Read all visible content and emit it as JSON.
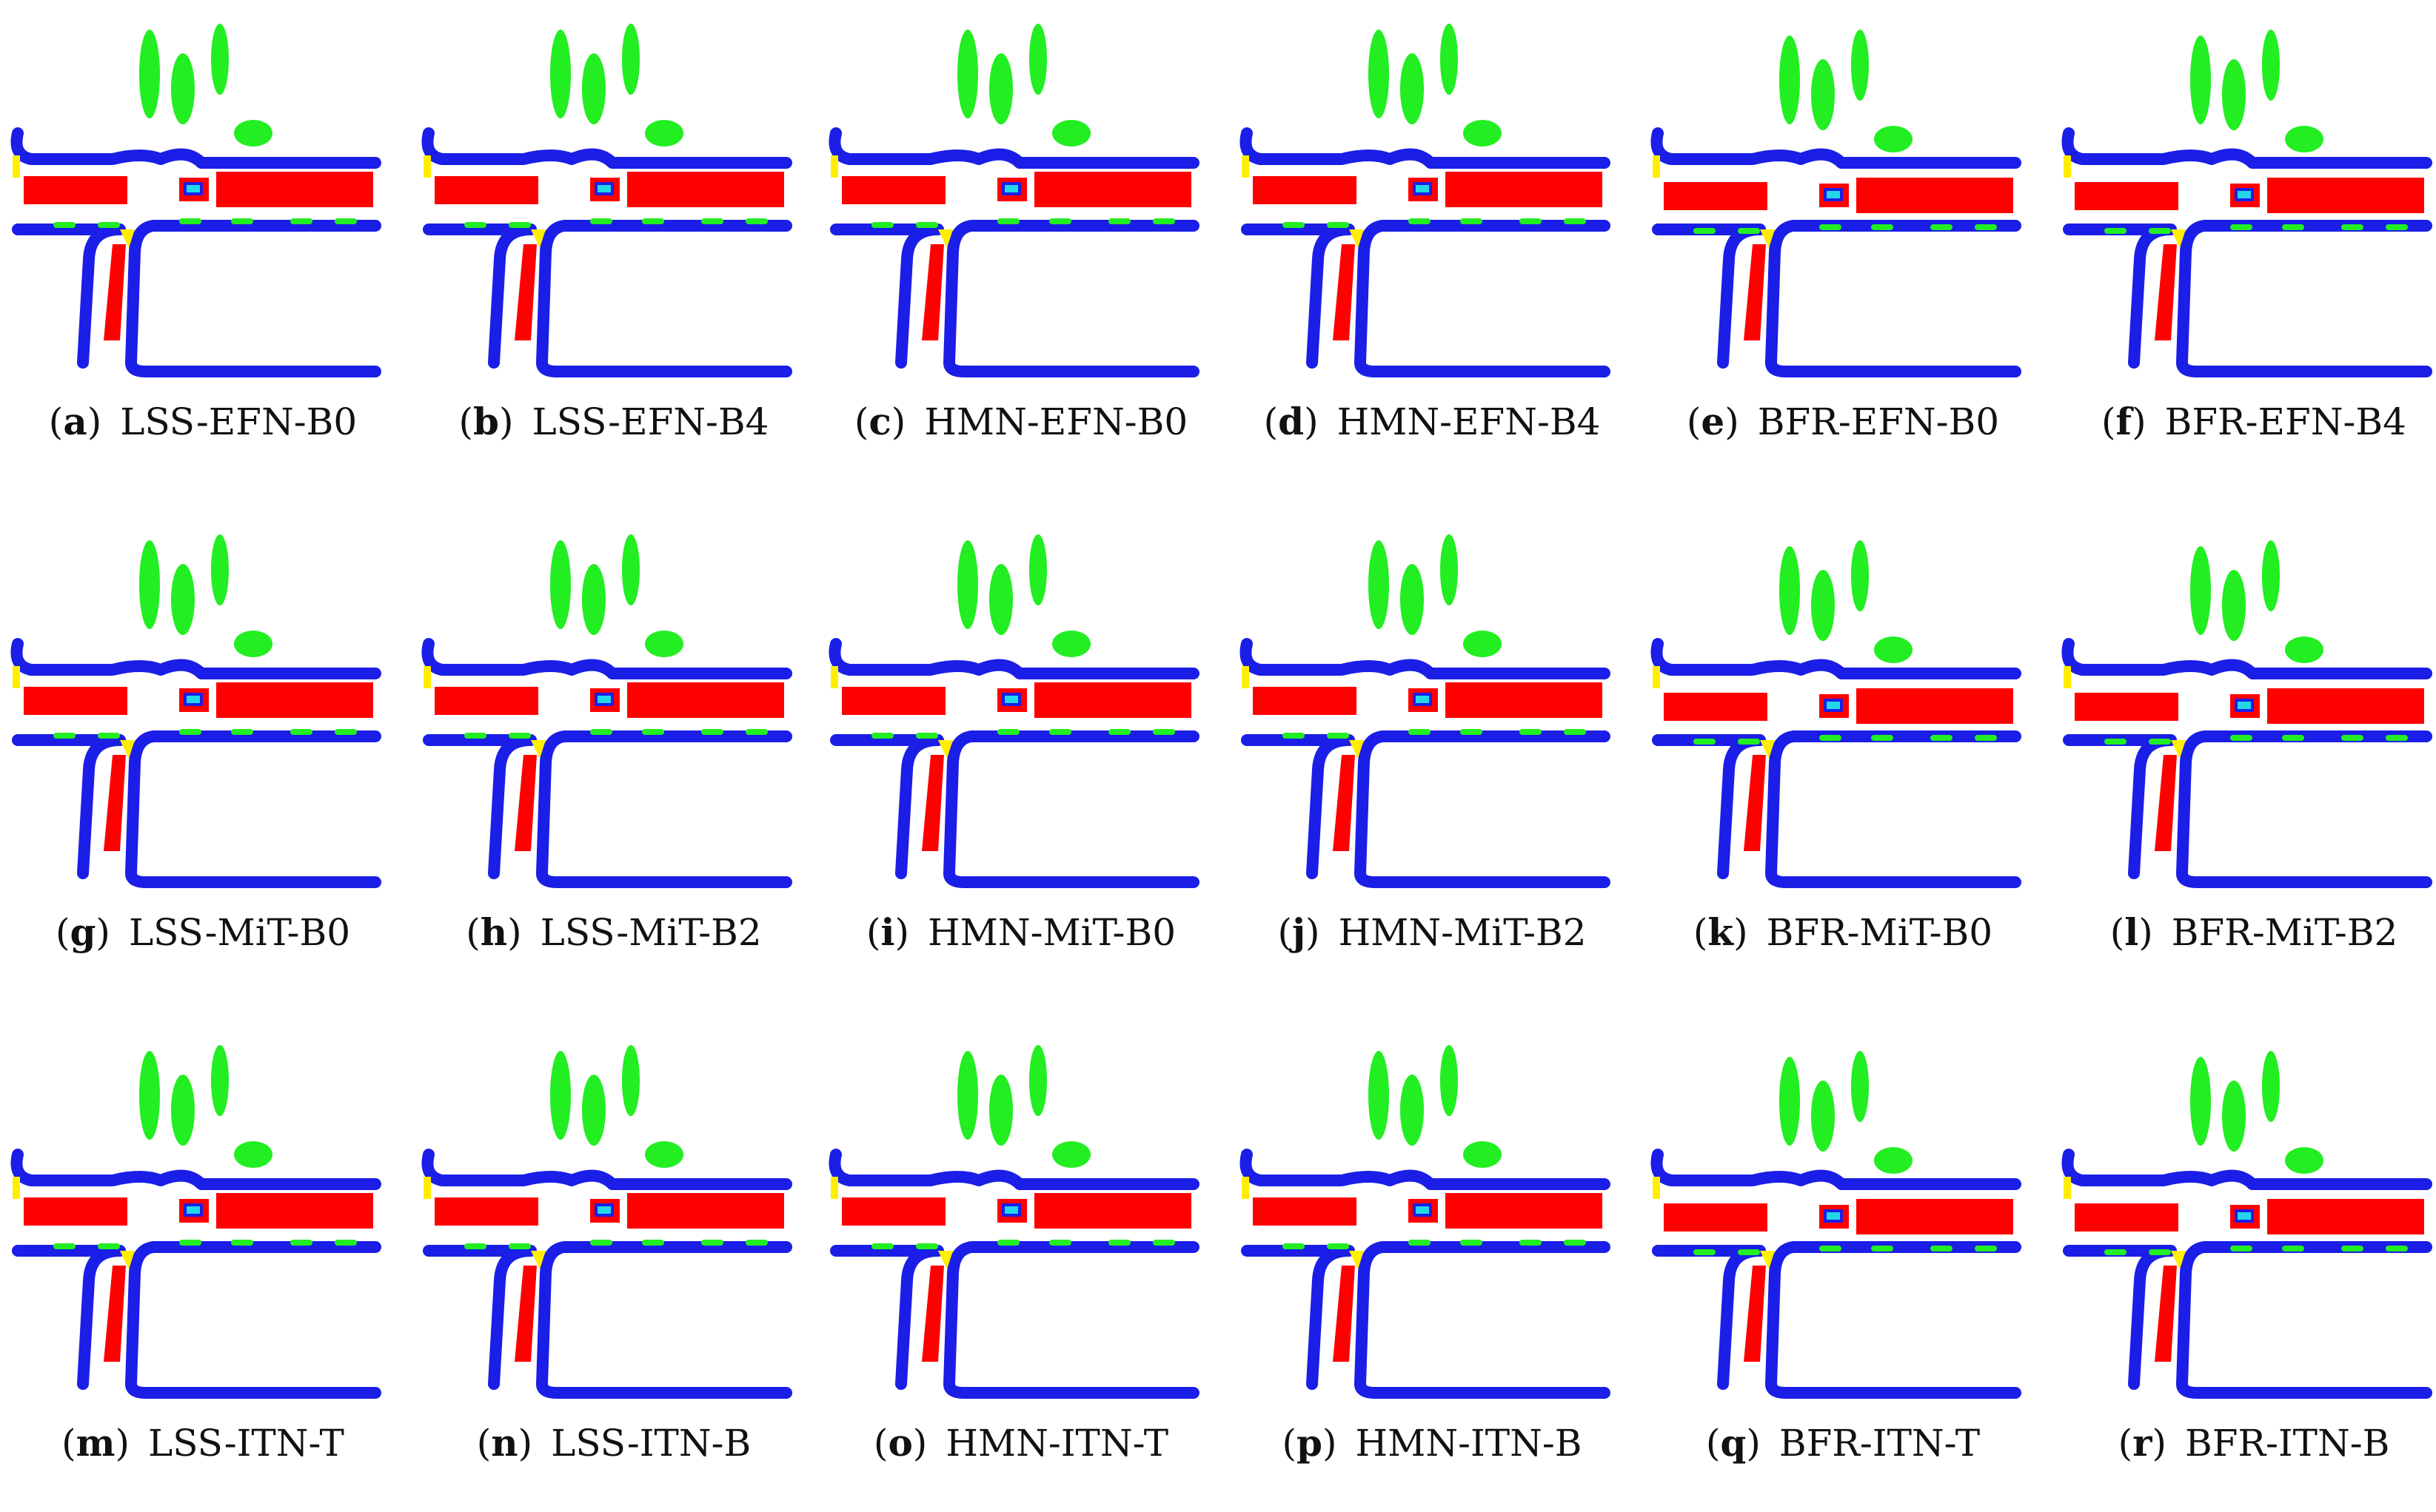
{
  "colors": {
    "road": "#1a1ee6",
    "vehicle": "#ff0000",
    "vegetation": "#22ee22",
    "marking": "#ffee00",
    "object": "#22d8e8",
    "background": "#ffffff"
  },
  "panels": [
    {
      "letter": "a",
      "label": "LSS-EFN-B0"
    },
    {
      "letter": "b",
      "label": "LSS-EFN-B4"
    },
    {
      "letter": "c",
      "label": "HMN-EFN-B0"
    },
    {
      "letter": "d",
      "label": "HMN-EFN-B4"
    },
    {
      "letter": "e",
      "label": "BFR-EFN-B0"
    },
    {
      "letter": "f",
      "label": "BFR-EFN-B4"
    },
    {
      "letter": "g",
      "label": "LSS-MiT-B0"
    },
    {
      "letter": "h",
      "label": "LSS-MiT-B2"
    },
    {
      "letter": "i",
      "label": "HMN-MiT-B0"
    },
    {
      "letter": "j",
      "label": "HMN-MiT-B2"
    },
    {
      "letter": "k",
      "label": "BFR-MiT-B0"
    },
    {
      "letter": "l",
      "label": "BFR-MiT-B2"
    },
    {
      "letter": "m",
      "label": "LSS-ITN-T"
    },
    {
      "letter": "n",
      "label": "LSS-ITN-B"
    },
    {
      "letter": "o",
      "label": "HMN-ITN-T"
    },
    {
      "letter": "p",
      "label": "HMN-ITN-B"
    },
    {
      "letter": "q",
      "label": "BFR-ITN-T"
    },
    {
      "letter": "r",
      "label": "BFR-ITN-B"
    }
  ]
}
